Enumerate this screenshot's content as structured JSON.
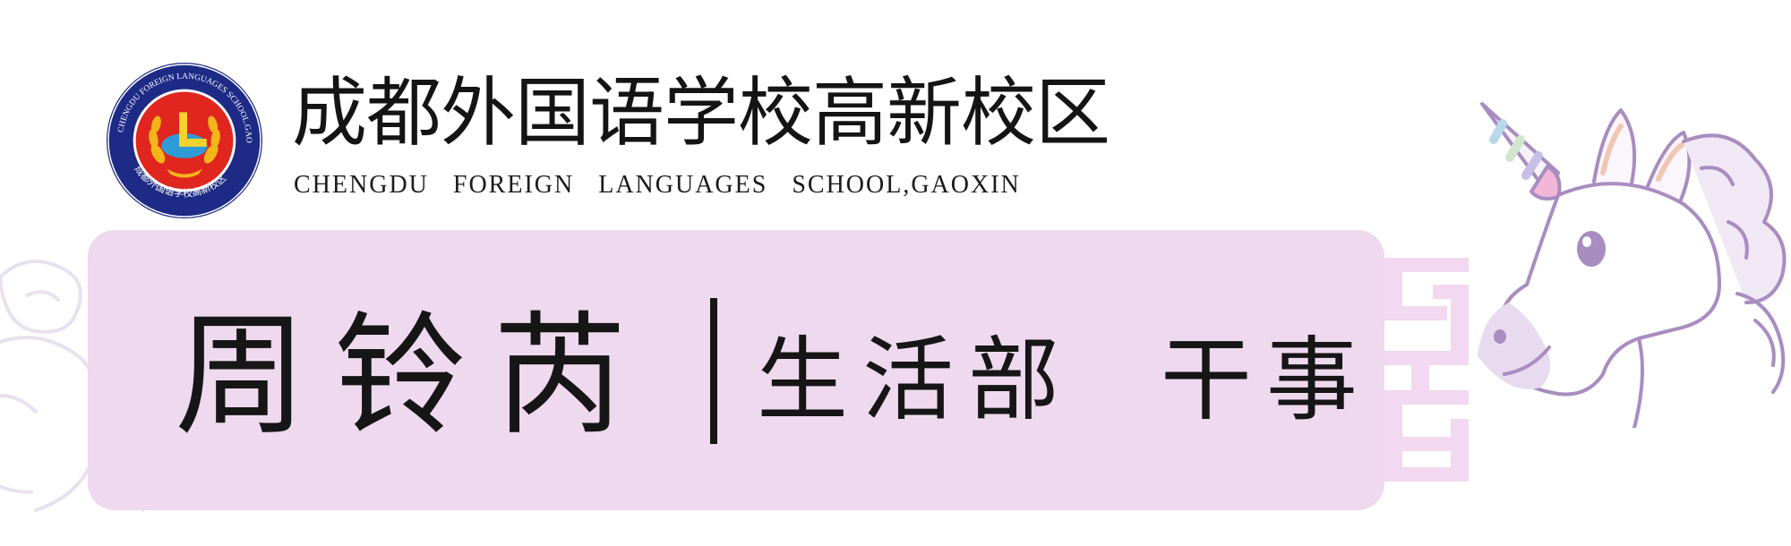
{
  "school": {
    "name_cn": "成都外国语学校高新校区",
    "name_en": "CHENGDU   FOREIGN   LANGUAGES   SCHOOL,GAOXIN",
    "seal_ring_text": "CHENGDU FOREIGN LANGUAGES SCHOOL.GAOXIN",
    "seal_bottom_text": "成都外国语学校高新校区"
  },
  "card": {
    "person_name": "周铃芮",
    "department": "生活部",
    "position": "干事"
  },
  "colors": {
    "card_background": "#efd9ef",
    "seal_ring": "#1d2a86",
    "seal_center": "#e0261f",
    "seal_wreath": "#f2b51a",
    "unicorn_outline": "#a98cc0",
    "unicorn_horn_pink": "#f2b7d6",
    "unicorn_horn_blue": "#b7d9ea",
    "fret_pattern": "#f2d8f0"
  },
  "decorations": {
    "logo_icon": "school-seal-icon",
    "mascot_icon": "unicorn-icon",
    "faint_mascot_icon": "faint-unicorn-icon",
    "pattern_icon": "greek-fret-pattern-icon"
  }
}
